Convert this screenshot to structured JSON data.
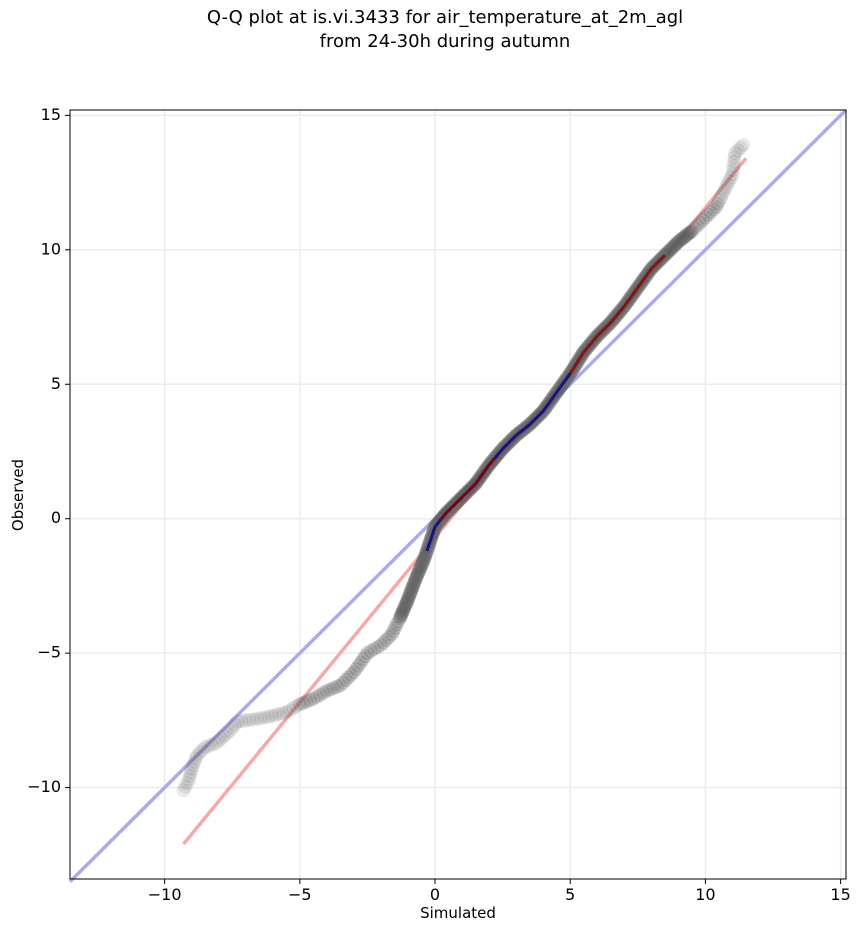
{
  "title_line1": "Q-Q plot at is.vi.3433 for air_temperature_at_2m_agl",
  "title_line2": "from 24-30h during autumn",
  "colors": {
    "identity_line": "#aaaaf0",
    "fit_line": "#f5a9a9",
    "points": "#555555",
    "dense_low": "#00008b",
    "dense_high": "#8b0000",
    "grid": "#ececec"
  },
  "chart_data": {
    "type": "scatter",
    "title": "Q-Q plot at is.vi.3433 for air_temperature_at_2m_agl\nfrom 24-30h during autumn",
    "xlabel": "Simulated",
    "ylabel": "Observed",
    "xlim": [
      -13.5,
      15.2
    ],
    "ylim": [
      -13.4,
      15.2
    ],
    "xticks": [
      -10,
      -5,
      0,
      5,
      10,
      15
    ],
    "xtick_labels": [
      "−10",
      "−5",
      "0",
      "5",
      "10",
      "15"
    ],
    "yticks": [
      -10,
      -5,
      0,
      5,
      10,
      15
    ],
    "ytick_labels": [
      "−10",
      "−5",
      "0",
      "5",
      "10",
      "15"
    ],
    "grid": true,
    "reference_lines": [
      {
        "kind": "identity",
        "x": [
          -13.5,
          15.2
        ],
        "y": [
          -13.5,
          15.2
        ]
      },
      {
        "kind": "fit",
        "x": [
          -9.3,
          11.5
        ],
        "y": [
          -12.1,
          13.4
        ]
      }
    ],
    "quantile_path": [
      [
        -9.3,
        -10.1
      ],
      [
        -9.1,
        -9.7
      ],
      [
        -9.0,
        -9.3
      ],
      [
        -8.8,
        -8.8
      ],
      [
        -8.5,
        -8.5
      ],
      [
        -8.1,
        -8.35
      ],
      [
        -7.6,
        -7.9
      ],
      [
        -7.3,
        -7.55
      ],
      [
        -6.3,
        -7.4
      ],
      [
        -5.5,
        -7.2
      ],
      [
        -5.0,
        -6.9
      ],
      [
        -4.5,
        -6.7
      ],
      [
        -4.0,
        -6.4
      ],
      [
        -3.5,
        -6.2
      ],
      [
        -3.0,
        -5.7
      ],
      [
        -2.5,
        -5.0
      ],
      [
        -2.0,
        -4.7
      ],
      [
        -1.6,
        -4.3
      ],
      [
        -1.3,
        -3.7
      ],
      [
        -1.0,
        -3.0
      ],
      [
        -0.7,
        -2.2
      ],
      [
        -0.4,
        -1.5
      ],
      [
        -0.2,
        -0.9
      ],
      [
        0.0,
        -0.3
      ],
      [
        0.4,
        0.2
      ],
      [
        1.0,
        0.8
      ],
      [
        1.5,
        1.3
      ],
      [
        2.0,
        2.0
      ],
      [
        2.5,
        2.6
      ],
      [
        3.0,
        3.1
      ],
      [
        3.5,
        3.5
      ],
      [
        4.0,
        4.0
      ],
      [
        4.5,
        4.7
      ],
      [
        5.0,
        5.4
      ],
      [
        5.5,
        6.2
      ],
      [
        6.0,
        6.8
      ],
      [
        6.5,
        7.3
      ],
      [
        7.0,
        7.9
      ],
      [
        7.5,
        8.6
      ],
      [
        8.0,
        9.3
      ],
      [
        8.5,
        9.8
      ],
      [
        9.0,
        10.3
      ],
      [
        9.5,
        10.7
      ],
      [
        10.0,
        11.2
      ],
      [
        10.4,
        11.6
      ],
      [
        10.7,
        12.2
      ],
      [
        11.0,
        12.8
      ],
      [
        11.1,
        13.6
      ],
      [
        11.4,
        13.9
      ]
    ],
    "dense_segment": {
      "x_start": -0.3,
      "x_end": 8.5,
      "split_at": 5.0
    }
  }
}
